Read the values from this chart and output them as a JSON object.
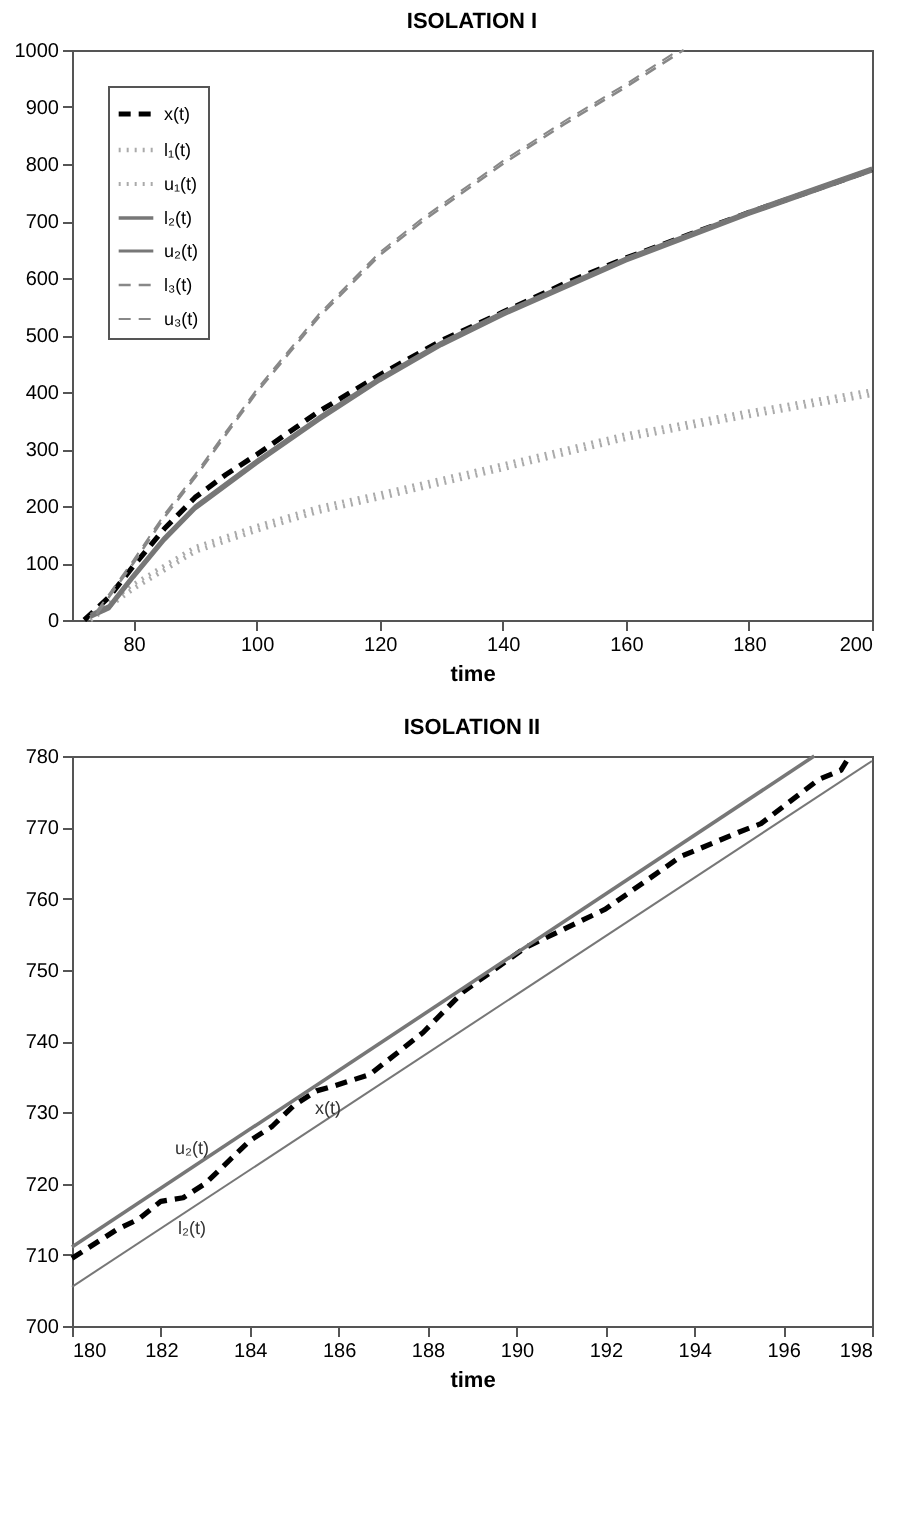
{
  "chart_data": [
    {
      "type": "line",
      "title": "ISOLATION I",
      "xlabel": "time",
      "xlim": [
        70,
        200
      ],
      "xticks": [
        80,
        100,
        120,
        140,
        160,
        180,
        200
      ],
      "ylim": [
        0,
        1000
      ],
      "yticks": [
        0,
        100,
        200,
        300,
        400,
        500,
        600,
        700,
        800,
        900,
        1000
      ],
      "grid": false,
      "legend": "top left",
      "marker": "none",
      "series": [
        {
          "name": "x(t)",
          "color": "#000000",
          "line_style": "dashed",
          "x": [
            72,
            76,
            80,
            85,
            90,
            95,
            100,
            110,
            120,
            130,
            140,
            150,
            160,
            170,
            180,
            190,
            200
          ],
          "values": [
            0,
            40,
            95,
            160,
            215,
            255,
            290,
            365,
            430,
            490,
            540,
            590,
            635,
            675,
            715,
            752,
            790
          ]
        },
        {
          "name": "l₁(t)",
          "color": "#aaaaaa",
          "line_style": "dotted",
          "x": [
            73,
            80,
            90,
            100,
            110,
            120,
            140,
            160,
            180,
            200
          ],
          "values": [
            0,
            55,
            120,
            157,
            190,
            214,
            265,
            318,
            358,
            395
          ]
        },
        {
          "name": "u₁(t)",
          "color": "#aaaaaa",
          "line_style": "dotted",
          "x": [
            73,
            80,
            90,
            100,
            110,
            120,
            140,
            160,
            180,
            200
          ],
          "values": [
            5,
            63,
            128,
            165,
            198,
            222,
            273,
            326,
            366,
            403
          ]
        },
        {
          "name": "l₂(t)",
          "color": "#777777",
          "line_style": "solid",
          "x": [
            73,
            76,
            80,
            85,
            90,
            100,
            110,
            120,
            130,
            140,
            160,
            180,
            200
          ],
          "values": [
            5,
            20,
            75,
            140,
            195,
            275,
            350,
            420,
            482,
            535,
            630,
            712,
            788
          ]
        },
        {
          "name": "u₂(t)",
          "color": "#777777",
          "line_style": "solid",
          "x": [
            73,
            76,
            80,
            85,
            90,
            100,
            110,
            120,
            130,
            140,
            160,
            180,
            200
          ],
          "values": [
            10,
            25,
            80,
            145,
            200,
            280,
            355,
            425,
            487,
            540,
            635,
            717,
            793
          ]
        },
        {
          "name": "l₃(t)",
          "color": "#888888",
          "line_style": "dashed",
          "x": [
            74,
            80,
            85,
            90,
            95,
            100,
            110,
            120,
            127,
            140,
            150,
            160,
            169.4
          ],
          "values": [
            10,
            100,
            180,
            250,
            325,
            399,
            530,
            640,
            700,
            800,
            870,
            935,
            1000
          ]
        },
        {
          "name": "u₃(t)",
          "color": "#888888",
          "line_style": "dashed",
          "x": [
            74,
            80,
            85,
            90,
            95,
            100,
            110,
            120,
            127,
            140,
            150,
            160,
            168.6
          ],
          "values": [
            15,
            105,
            185,
            255,
            330,
            404,
            535,
            645,
            705,
            805,
            875,
            940,
            1000
          ]
        }
      ]
    },
    {
      "type": "line",
      "title": "ISOLATION II",
      "xlabel": "time",
      "xlim": [
        180,
        198
      ],
      "xticks": [
        180,
        182,
        184,
        186,
        188,
        190,
        192,
        194,
        196,
        198
      ],
      "ylim": [
        700,
        780
      ],
      "yticks": [
        700,
        710,
        720,
        730,
        740,
        750,
        760,
        770,
        780
      ],
      "grid": false,
      "legend": false,
      "marker": "none",
      "series": [
        {
          "name": "x(t)",
          "color": "#000000",
          "line_style": "dashed",
          "x": [
            180,
            181,
            181.5,
            182,
            182.5,
            183,
            183.5,
            184,
            184.5,
            185,
            185.5,
            185.9,
            186.7,
            187.9,
            188.8,
            190.2,
            192,
            193.7,
            195,
            195.5,
            196.8,
            197.3,
            197.5
          ],
          "values": [
            709.5,
            713.5,
            715,
            717.5,
            718,
            720,
            723,
            726,
            728,
            731,
            733,
            733.7,
            735.3,
            741.2,
            746.9,
            753.1,
            758.5,
            765.9,
            769.3,
            770.5,
            776.7,
            778,
            780
          ]
        },
        {
          "name": "u₂(t)",
          "color": "#777777",
          "line_style": "solid",
          "x": [
            180,
            196.7
          ],
          "values": [
            711.1,
            780
          ]
        },
        {
          "name": "l₂(t)",
          "color": "#777777",
          "line_style": "solid",
          "x": [
            180,
            198
          ],
          "values": [
            705.5,
            779.3
          ]
        }
      ]
    }
  ]
}
